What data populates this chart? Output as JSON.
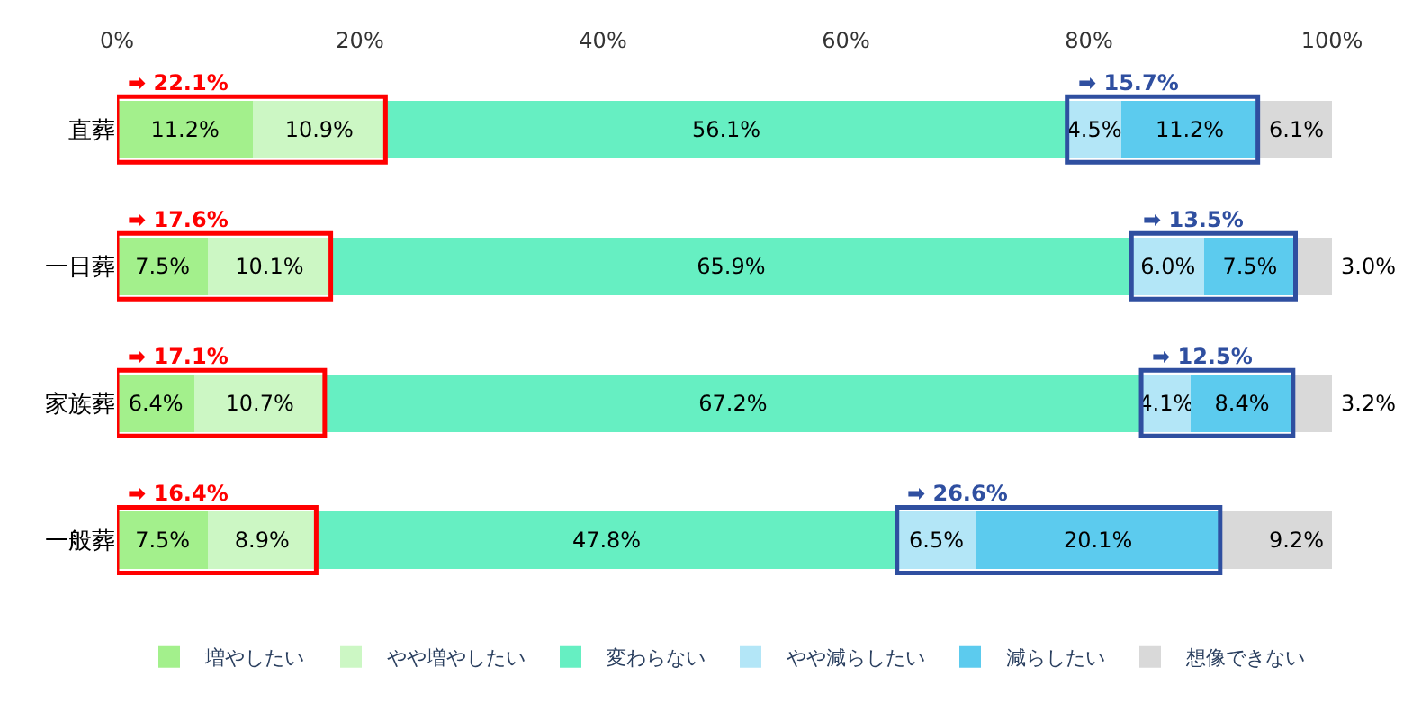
{
  "chart_data": {
    "type": "bar",
    "orientation": "horizontal",
    "stacked": true,
    "categories": [
      "直葬",
      "一日葬",
      "家族葬",
      "一般葬"
    ],
    "series": [
      {
        "name": "増やしたい",
        "color": "#a3f08c",
        "values": [
          11.2,
          7.5,
          6.4,
          7.5
        ],
        "value_labels": [
          "11.2%",
          "7.5%",
          "6.4%",
          "7.5%"
        ]
      },
      {
        "name": "やや増やしたい",
        "color": "#ccf7c4",
        "values": [
          10.9,
          10.1,
          10.7,
          8.9
        ],
        "value_labels": [
          "10.9%",
          "10.1%",
          "10.7%",
          "8.9%"
        ]
      },
      {
        "name": "変わらない",
        "color": "#66efc2",
        "values": [
          56.1,
          65.9,
          67.2,
          47.8
        ],
        "value_labels": [
          "56.1%",
          "65.9%",
          "67.2%",
          "47.8%"
        ]
      },
      {
        "name": "やや減らしたい",
        "color": "#b3e6f7",
        "values": [
          4.5,
          6.0,
          4.1,
          6.5
        ],
        "value_labels": [
          "4.5%",
          "6.0%",
          "4.1%",
          "6.5%"
        ]
      },
      {
        "name": "減らしたい",
        "color": "#5ccbee",
        "values": [
          11.2,
          7.5,
          8.4,
          20.1
        ],
        "value_labels": [
          "11.2%",
          "7.5%",
          "8.4%",
          "20.1%"
        ]
      },
      {
        "name": "想像できない",
        "color": "#d9d9d9",
        "values": [
          6.1,
          3.0,
          3.2,
          9.2
        ],
        "value_labels": [
          "6.1%",
          "3.0%",
          "3.2%",
          "9.2%"
        ]
      }
    ],
    "xlim": [
      0,
      100
    ],
    "xticks": [
      {
        "value": 0,
        "label": "0%"
      },
      {
        "value": 20,
        "label": "20%"
      },
      {
        "value": 40,
        "label": "40%"
      },
      {
        "value": 60,
        "label": "60%"
      },
      {
        "value": 80,
        "label": "80%"
      },
      {
        "value": 100,
        "label": "100%"
      }
    ],
    "annotations": [
      {
        "text": "➡ 22.1%",
        "x": 0,
        "y": "直葬"
      },
      {
        "text": "➡ 15.7%",
        "x": 78.2,
        "y": "直葬"
      },
      {
        "text": "➡ 17.6%",
        "x": 0,
        "y": "一日葬"
      },
      {
        "text": "➡ 13.5%",
        "x": 83.5,
        "y": "一日葬"
      },
      {
        "text": "➡ 17.1%",
        "x": 0,
        "y": "家族葬"
      },
      {
        "text": "➡ 12.5%",
        "x": 84.3,
        "y": "家族葬"
      },
      {
        "text": "➡ 16.4%",
        "x": 0,
        "y": "一般葬"
      },
      {
        "text": "➡ 26.6%",
        "x": 64.2,
        "y": "一般葬"
      }
    ],
    "legend": "bottom"
  }
}
